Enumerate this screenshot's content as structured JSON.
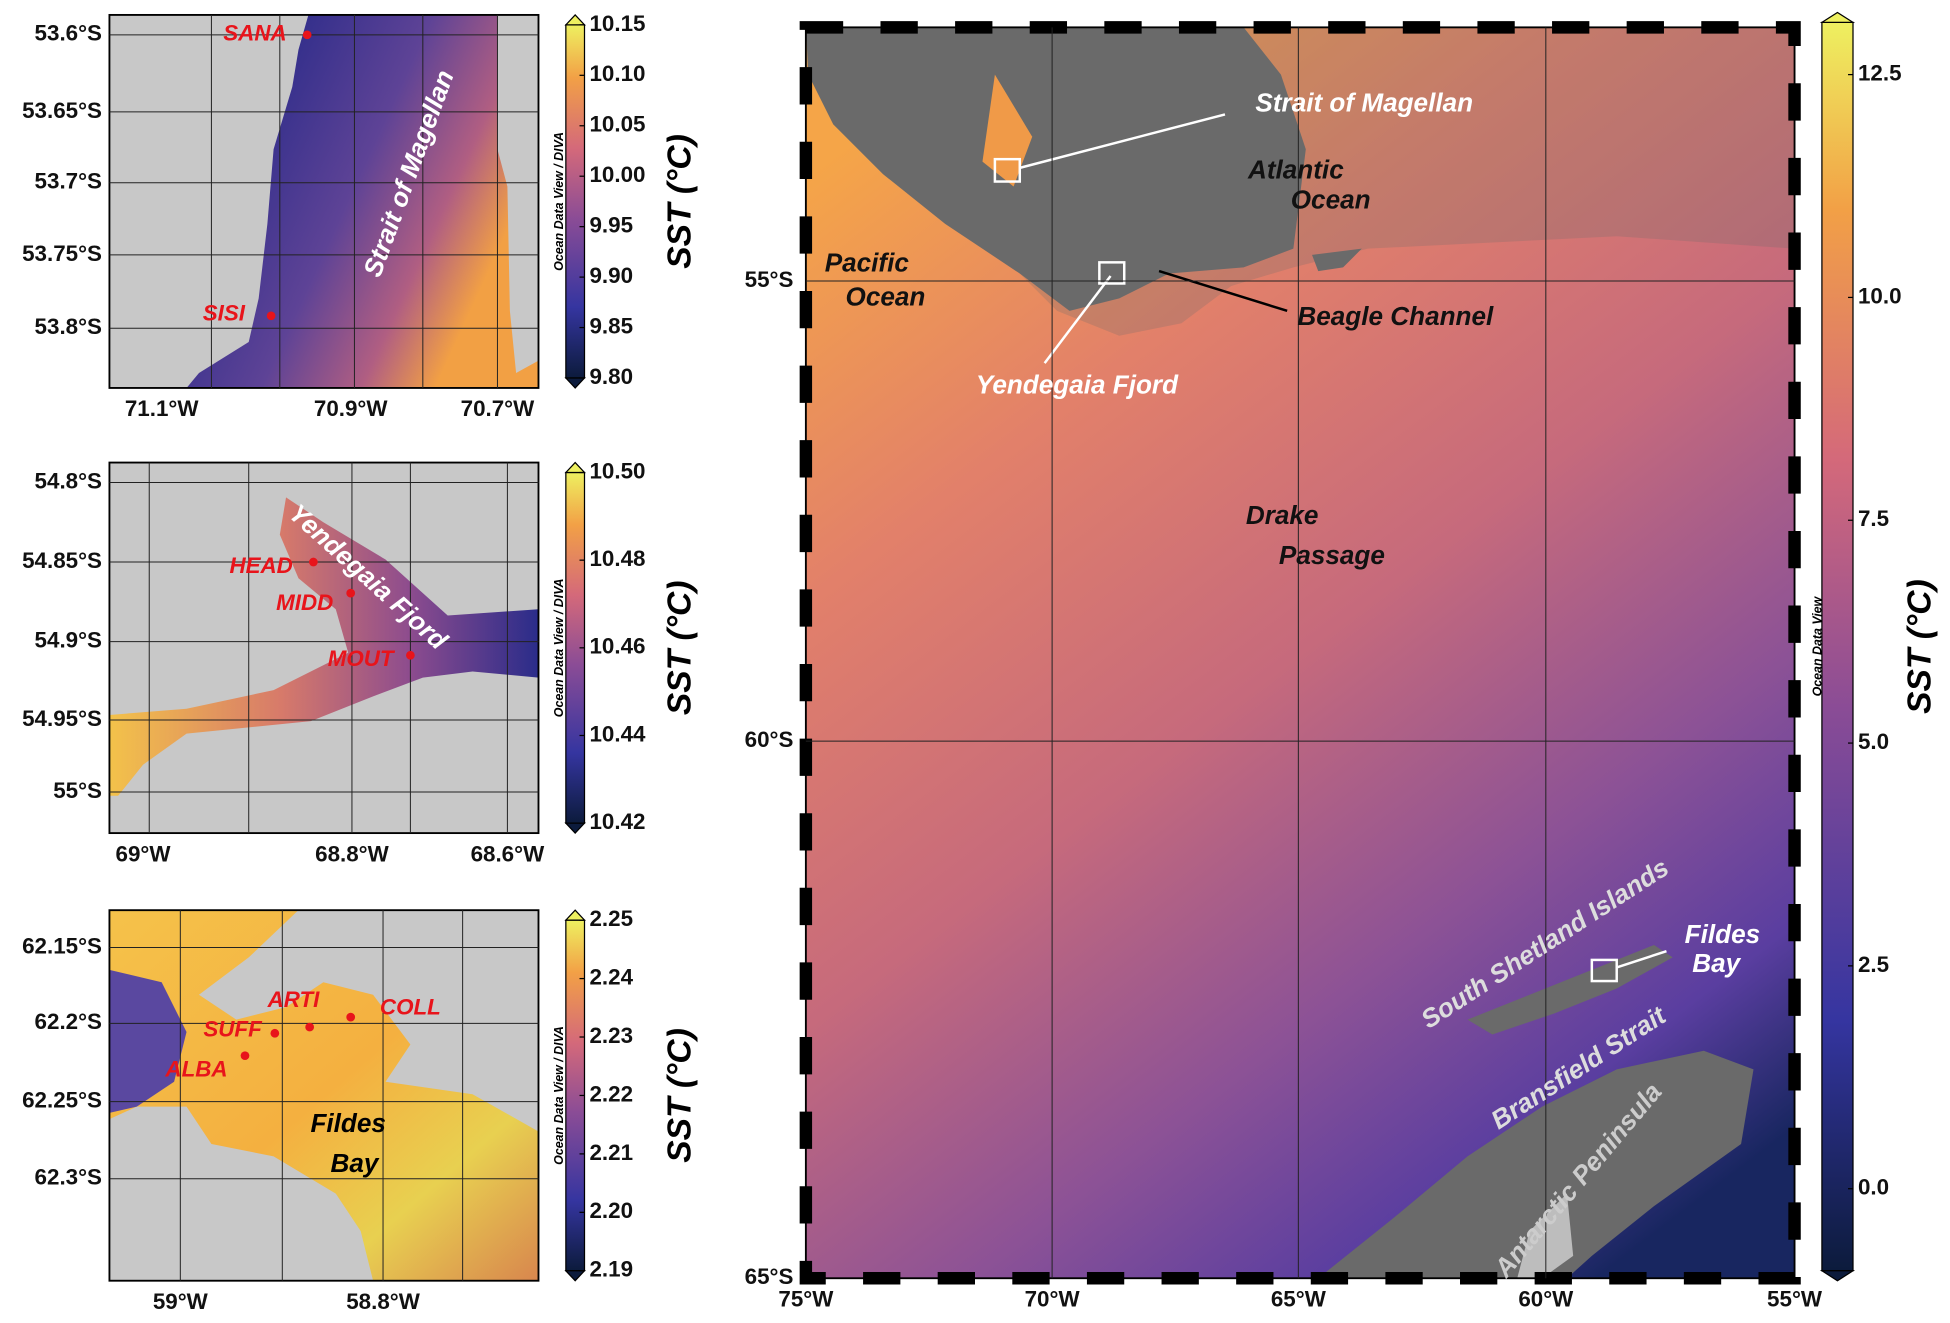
{
  "panels": [
    {
      "yticks": [
        "53.6°S",
        "53.65°S",
        "53.7°S",
        "53.75°S",
        "53.8°S"
      ],
      "xticks": [
        "71.1°W",
        "70.9°W",
        "70.7°W"
      ],
      "colorbar": {
        "ticks": [
          "10.15",
          "10.10",
          "10.05",
          "10.00",
          "9.95",
          "9.90",
          "9.85",
          "9.80"
        ],
        "label": "SST (°C)",
        "credit": "Ocean Data View / DIVA"
      },
      "labels": [
        "Strait of Magellan"
      ],
      "stations": [
        "SANA",
        "SISI"
      ]
    },
    {
      "yticks": [
        "54.8°S",
        "54.85°S",
        "54.9°S",
        "54.95°S",
        "55°S"
      ],
      "xticks": [
        "69°W",
        "68.8°W",
        "68.6°W"
      ],
      "colorbar": {
        "ticks": [
          "10.50",
          "10.48",
          "10.46",
          "10.44",
          "10.42"
        ],
        "label": "SST (°C)",
        "credit": "Ocean Data View / DIVA"
      },
      "labels": [
        "Yendegaia Fjord"
      ],
      "stations": [
        "HEAD",
        "MIDD",
        "MOUT"
      ]
    },
    {
      "yticks": [
        "62.15°S",
        "62.2°S",
        "62.25°S",
        "62.3°S"
      ],
      "xticks": [
        "59°W",
        "58.8°W"
      ],
      "colorbar": {
        "ticks": [
          "2.25",
          "2.24",
          "2.23",
          "2.22",
          "2.21",
          "2.20",
          "2.19"
        ],
        "label": "SST (°C)",
        "credit": "Ocean Data View / DIVA"
      },
      "labels": [
        "Fildes",
        "Bay"
      ],
      "stations": [
        "ARTI",
        "COLL",
        "SUFF",
        "ALBA"
      ]
    }
  ],
  "main": {
    "yticks": [
      "55°S",
      "60°S",
      "65°S"
    ],
    "xticks": [
      "75°W",
      "70°W",
      "65°W",
      "60°W",
      "55°W"
    ],
    "colorbar": {
      "ticks": [
        "12.5",
        "10.0",
        "7.5",
        "5.0",
        "2.5",
        "0.0"
      ],
      "label": "SST (°C)"
    },
    "labels": [
      "Strait of Magellan",
      "Atlantic",
      "Ocean",
      "Pacific",
      "Ocean",
      "Beagle Channel",
      "Yendegaia Fjord",
      "Drake",
      "Passage",
      "South Shetland Islands",
      "Fildes",
      "Bay",
      "Bransfield Strait",
      "Antarctic Peninsula"
    ],
    "credit": "Ocean Data View"
  }
}
